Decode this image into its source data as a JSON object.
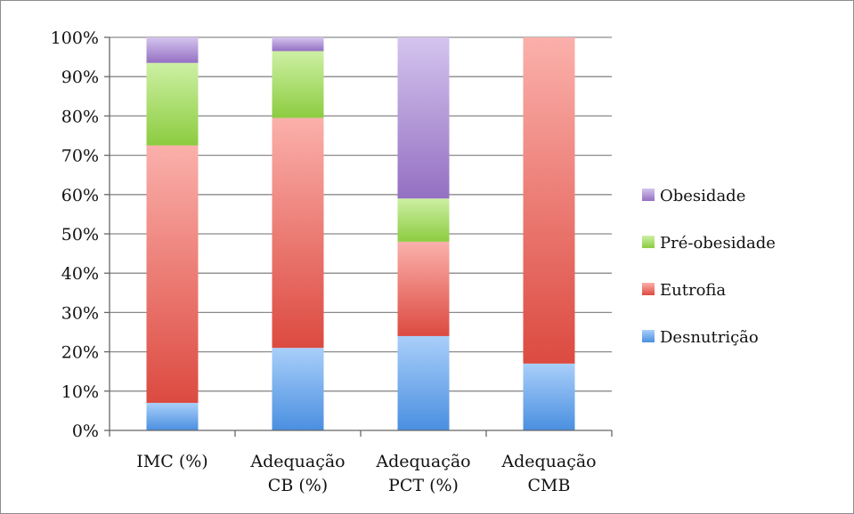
{
  "chart_data": {
    "type": "bar",
    "stacked": true,
    "percent": true,
    "categories": [
      [
        "IMC (%)"
      ],
      [
        "Adequação",
        "CB (%)"
      ],
      [
        "Adequação",
        "PCT (%)"
      ],
      [
        "Adequação",
        "CMB"
      ]
    ],
    "series": [
      {
        "name": "Desnutrição",
        "values": [
          7,
          21,
          24,
          17
        ],
        "color_light": "#a9cffa",
        "color_dark": "#4a8fe0"
      },
      {
        "name": "Eutrofia",
        "values": [
          65.5,
          58.5,
          24,
          83
        ],
        "color_light": "#fbb0ab",
        "color_dark": "#dc4a40"
      },
      {
        "name": "Pré-obesidade",
        "values": [
          21,
          17,
          11,
          0
        ],
        "color_light": "#cdf0a4",
        "color_dark": "#8ccc40"
      },
      {
        "name": "Obesidade",
        "values": [
          6.5,
          3.5,
          41,
          0
        ],
        "color_light": "#d4c4ee",
        "color_dark": "#9470c2"
      }
    ],
    "ylim": [
      0,
      100
    ],
    "yticks": [
      "0%",
      "10%",
      "20%",
      "30%",
      "40%",
      "50%",
      "60%",
      "70%",
      "80%",
      "90%",
      "100%"
    ],
    "grid": true,
    "legend_position": "right"
  }
}
